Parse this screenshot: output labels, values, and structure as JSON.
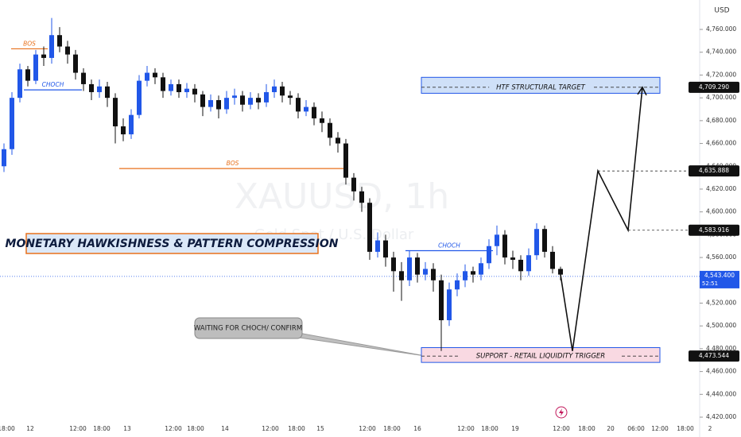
{
  "chart_data": {
    "type": "candlestick",
    "watermark": "XAUUSD, 1h",
    "watermark_subtitle": "Gold Spot / U.S. Dollar",
    "title": "MONETARY HAWKISHNESS & PATTERN COMPRESSION",
    "currency": "USD",
    "up_color": "#2157e8",
    "down_color": "#111111",
    "open": [
      4640,
      4655,
      4700,
      4725,
      4715,
      4738,
      4735,
      4755,
      4745,
      4738,
      4722,
      4712,
      4705,
      4710,
      4700,
      4675,
      4668,
      4685,
      4715,
      4722,
      4718,
      4706,
      4712,
      4705,
      4708,
      4703,
      4692,
      4698,
      4690,
      4700,
      4702,
      4694,
      4700,
      4696,
      4705,
      4710,
      4702,
      4700,
      4688,
      4692,
      4682,
      4678,
      4665,
      4660,
      4630,
      4618,
      4608,
      4565,
      4575,
      4560,
      4548,
      4540,
      4560,
      4545,
      4550,
      4540,
      4505,
      4532,
      4540,
      4548,
      4545,
      4555,
      4570,
      4580,
      4560,
      4558,
      4548,
      4562,
      4585,
      4565,
      4550
    ],
    "high": [
      4660,
      4705,
      4730,
      4728,
      4742,
      4745,
      4770,
      4762,
      4750,
      4742,
      4726,
      4716,
      4716,
      4714,
      4704,
      4682,
      4690,
      4720,
      4728,
      4726,
      4722,
      4716,
      4716,
      4713,
      4712,
      4706,
      4703,
      4702,
      4706,
      4708,
      4706,
      4705,
      4704,
      4712,
      4716,
      4714,
      4706,
      4704,
      4698,
      4696,
      4688,
      4682,
      4670,
      4664,
      4634,
      4622,
      4612,
      4582,
      4580,
      4565,
      4556,
      4566,
      4564,
      4556,
      4555,
      4545,
      4538,
      4546,
      4554,
      4552,
      4560,
      4576,
      4588,
      4584,
      4566,
      4562,
      4568,
      4590,
      4588,
      4570,
      4552
    ],
    "low": [
      4635,
      4650,
      4696,
      4710,
      4712,
      4728,
      4730,
      4740,
      4730,
      4716,
      4706,
      4698,
      4700,
      4692,
      4660,
      4662,
      4664,
      4682,
      4710,
      4712,
      4700,
      4702,
      4700,
      4700,
      4696,
      4684,
      4688,
      4682,
      4686,
      4694,
      4688,
      4690,
      4690,
      4692,
      4700,
      4696,
      4694,
      4682,
      4684,
      4676,
      4670,
      4658,
      4652,
      4624,
      4610,
      4600,
      4558,
      4560,
      4552,
      4530,
      4522,
      4535,
      4538,
      4540,
      4530,
      4478,
      4500,
      4526,
      4534,
      4538,
      4540,
      4550,
      4562,
      4554,
      4550,
      4540,
      4544,
      4558,
      4560,
      4546,
      4540
    ],
    "close": [
      4655,
      4700,
      4725,
      4715,
      4738,
      4735,
      4755,
      4745,
      4738,
      4722,
      4712,
      4705,
      4710,
      4700,
      4675,
      4668,
      4685,
      4715,
      4722,
      4718,
      4706,
      4712,
      4705,
      4708,
      4703,
      4692,
      4698,
      4690,
      4700,
      4702,
      4694,
      4700,
      4696,
      4705,
      4710,
      4702,
      4700,
      4688,
      4692,
      4682,
      4678,
      4665,
      4660,
      4630,
      4618,
      4608,
      4565,
      4575,
      4560,
      4548,
      4540,
      4560,
      4545,
      4550,
      4540,
      4505,
      4532,
      4540,
      4548,
      4545,
      4555,
      4570,
      4580,
      4560,
      4558,
      4548,
      4562,
      4585,
      4565,
      4550,
      4545
    ],
    "xlim": [
      -0.5,
      87.5
    ],
    "ylim": [
      4402.6,
      4785.8
    ],
    "xticks": [
      {
        "value": 0.3,
        "label": "18:00"
      },
      {
        "value": 3.3,
        "label": "12"
      },
      {
        "value": 9.3,
        "label": "12:00"
      },
      {
        "value": 12.3,
        "label": "18:00"
      },
      {
        "value": 15.5,
        "label": "13"
      },
      {
        "value": 21.3,
        "label": "12:00"
      },
      {
        "value": 24.1,
        "label": "18:00"
      },
      {
        "value": 27.8,
        "label": "14"
      },
      {
        "value": 33.5,
        "label": "12:00"
      },
      {
        "value": 36.8,
        "label": "18:00"
      },
      {
        "value": 39.8,
        "label": "15"
      },
      {
        "value": 45.7,
        "label": "12:00"
      },
      {
        "value": 48.8,
        "label": "18:00"
      },
      {
        "value": 52,
        "label": "16"
      },
      {
        "value": 58.1,
        "label": "12:00"
      },
      {
        "value": 61.1,
        "label": "18:00"
      },
      {
        "value": 64.3,
        "label": "19"
      },
      {
        "value": 70.1,
        "label": "12:00"
      },
      {
        "value": 73.3,
        "label": "18:00"
      },
      {
        "value": 76.3,
        "label": "20"
      },
      {
        "value": 79.5,
        "label": "06:00"
      },
      {
        "value": 82.5,
        "label": "12:00"
      },
      {
        "value": 85.7,
        "label": "18:00"
      },
      {
        "value": 88.8,
        "label": "2"
      }
    ],
    "yticks": [
      {
        "value": 4420,
        "label": "4,420.000"
      },
      {
        "value": 4440,
        "label": "4,440.000"
      },
      {
        "value": 4460,
        "label": "4,460.000"
      },
      {
        "value": 4480,
        "label": "4,480.000"
      },
      {
        "value": 4500,
        "label": "4,500.000"
      },
      {
        "value": 4520,
        "label": "4,520.000"
      },
      {
        "value": 4540,
        "label": "4,540.000"
      },
      {
        "value": 4560,
        "label": "4,560.000"
      },
      {
        "value": 4580,
        "label": "4,580.000"
      },
      {
        "value": 4600,
        "label": "4,600.000"
      },
      {
        "value": 4620,
        "label": "4,620.000"
      },
      {
        "value": 4640,
        "label": "4,640.000"
      },
      {
        "value": 4660,
        "label": "4,660.000"
      },
      {
        "value": 4680,
        "label": "4,680.000"
      },
      {
        "value": 4700,
        "label": "4,700.000"
      },
      {
        "value": 4720,
        "label": "4,720.000"
      },
      {
        "value": 4740,
        "label": "4,740.000"
      },
      {
        "value": 4760,
        "label": "4,760.000"
      }
    ],
    "annotations": [
      {
        "text": "BOS",
        "color": "#e8711c",
        "x": [
          0.9,
          5.5
        ],
        "y": 4743
      },
      {
        "text": "CHOCH",
        "color": "#2157e8",
        "x": [
          2.5,
          9.8
        ],
        "y": 4707
      },
      {
        "text": "BOS",
        "color": "#e8711c",
        "x": [
          14.5,
          43
        ],
        "y": 4638
      },
      {
        "text": "CHOCH",
        "color": "#2157e8",
        "x": [
          50.5,
          61.5
        ],
        "y": 4566
      }
    ],
    "zones": [
      {
        "label": "HTF STRUCTURAL TARGET",
        "x": [
          52.5,
          82.5
        ],
        "y": [
          4704,
          4718
        ],
        "fill": "#cfe0f8",
        "price": {
          "value": 4709.29,
          "label": "4,709.290"
        }
      },
      {
        "label": "SUPPORT - RETAIL LIQUIDITY TRIGGER",
        "x": [
          52.5,
          82.5
        ],
        "y": [
          4468,
          4481
        ],
        "fill": "#f9d9e2",
        "price": {
          "value": 4473.544,
          "label": "4,473.544"
        }
      }
    ],
    "projection": {
      "x": [
        70,
        71.5,
        74.7,
        78.5,
        80.3
      ],
      "values": [
        4545,
        4478,
        4635.888,
        4583.916,
        4709.29
      ]
    },
    "levels": [
      {
        "x": 74.7,
        "value": 4635.888,
        "label": "4,635.888"
      },
      {
        "x": 78.5,
        "value": 4583.916,
        "label": "4,583.916"
      }
    ],
    "current_price": {
      "value": 4543.4,
      "label": "4,543.400",
      "countdown": "52:51"
    },
    "callout": "WAITING FOR CHOCH/ CONFIRM"
  }
}
